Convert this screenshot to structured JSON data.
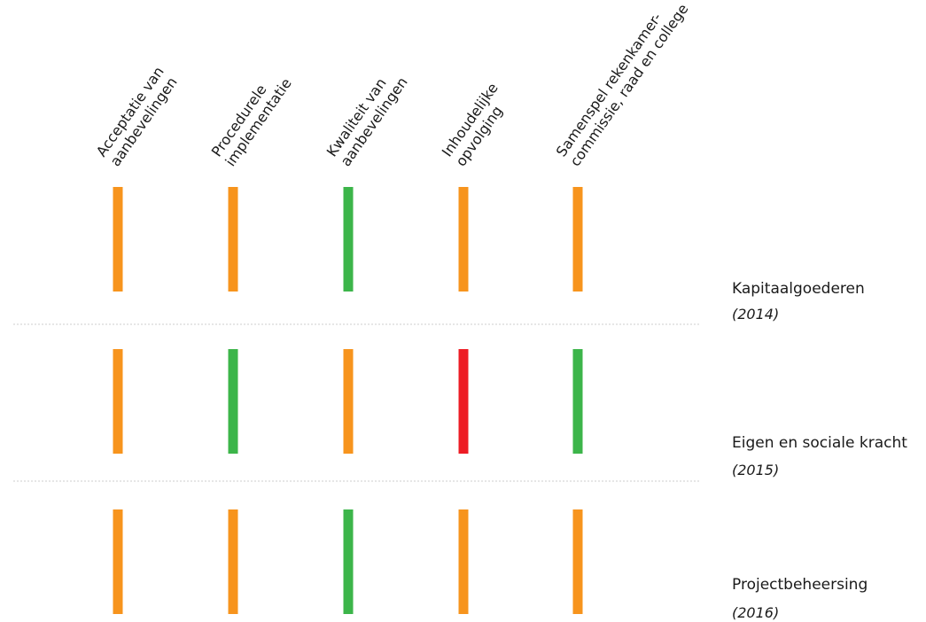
{
  "chart_data": {
    "type": "heatmap",
    "columns": [
      {
        "lines": [
          "Acceptatie van",
          "aanbevelingen"
        ]
      },
      {
        "lines": [
          "Procedurele",
          "implementatie"
        ]
      },
      {
        "lines": [
          "Kwaliteit van",
          "aanbevelingen"
        ]
      },
      {
        "lines": [
          "Inhoudelijke",
          "opvolging"
        ]
      },
      {
        "lines": [
          "Samenspel rekenkamer-",
          "commissie, raad en college"
        ]
      }
    ],
    "rows": [
      {
        "title": "Kapitaalgoederen",
        "year": "(2014)",
        "ratings": [
          "orange",
          "orange",
          "green",
          "orange",
          "orange"
        ]
      },
      {
        "title": "Eigen en sociale kracht",
        "year": "(2015)",
        "ratings": [
          "orange",
          "green",
          "orange",
          "red",
          "green"
        ]
      },
      {
        "title": "Projectbeheersing",
        "year": "(2016)",
        "ratings": [
          "orange",
          "orange",
          "green",
          "orange",
          "orange"
        ]
      }
    ],
    "colors": {
      "orange": "#f7941d",
      "green": "#3cb54a",
      "red": "#ed1c24",
      "divider": "#cccccc"
    }
  }
}
